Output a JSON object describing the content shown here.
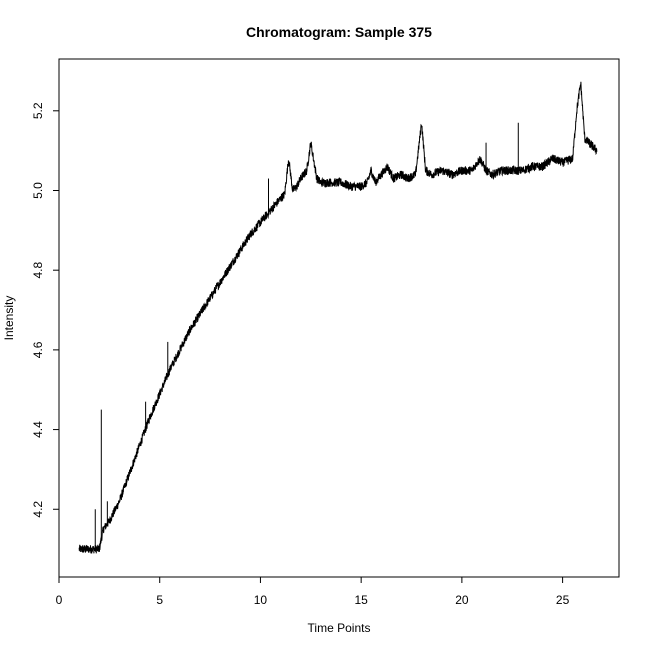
{
  "chart_data": {
    "type": "line",
    "title": "Chromatogram: Sample  375",
    "xlabel": "Time Points",
    "ylabel": "Intensity",
    "xlim": [
      0,
      27.8
    ],
    "ylim": [
      4.03,
      5.33
    ],
    "x_ticks": [
      0,
      5,
      10,
      15,
      20,
      25
    ],
    "y_ticks": [
      4.2,
      4.4,
      4.6,
      4.8,
      5.0,
      5.2
    ],
    "x_tick_labels": [
      "0",
      "5",
      "10",
      "15",
      "20",
      "25"
    ],
    "y_tick_labels": [
      "4.2",
      "4.4",
      "4.6",
      "4.8",
      "5.0",
      "5.2"
    ],
    "grid": false,
    "legend": "none",
    "line_color": "#000000",
    "series": [
      {
        "x": [
          1.0,
          1.5,
          2.0,
          2.2,
          2.5,
          3.0,
          3.5,
          4.0,
          4.5,
          5.0,
          5.5,
          6.0,
          6.5,
          7.0,
          7.5,
          8.0,
          8.5,
          9.0,
          9.5,
          10.0,
          10.5,
          11.0,
          11.2,
          11.4,
          11.6,
          11.8,
          12.0,
          12.3,
          12.5,
          12.8,
          13.0,
          13.5,
          14.0,
          14.5,
          15.0,
          15.3,
          15.5,
          15.7,
          16.0,
          16.3,
          16.6,
          17.0,
          17.3,
          17.7,
          18.0,
          18.2,
          18.5,
          19.0,
          19.5,
          20.0,
          20.5,
          20.9,
          21.2,
          21.5,
          22.0,
          22.5,
          23.0,
          23.5,
          24.0,
          24.5,
          25.0,
          25.5,
          25.7,
          25.9,
          26.1,
          26.5,
          26.7
        ],
        "y": [
          4.1,
          4.1,
          4.1,
          4.15,
          4.17,
          4.22,
          4.29,
          4.36,
          4.43,
          4.49,
          4.55,
          4.6,
          4.65,
          4.69,
          4.73,
          4.77,
          4.81,
          4.85,
          4.89,
          4.92,
          4.95,
          4.98,
          4.99,
          5.08,
          5.0,
          5.01,
          5.03,
          5.05,
          5.12,
          5.03,
          5.02,
          5.02,
          5.02,
          5.01,
          5.01,
          5.02,
          5.05,
          5.02,
          5.04,
          5.06,
          5.03,
          5.04,
          5.03,
          5.04,
          5.17,
          5.05,
          5.04,
          5.05,
          5.04,
          5.05,
          5.05,
          5.08,
          5.05,
          5.04,
          5.05,
          5.05,
          5.05,
          5.06,
          5.06,
          5.08,
          5.07,
          5.08,
          5.2,
          5.27,
          5.13,
          5.11,
          5.1
        ]
      }
    ],
    "spikes": [
      {
        "x": 1.8,
        "y": 4.2
      },
      {
        "x": 2.1,
        "y": 4.45
      },
      {
        "x": 2.4,
        "y": 4.22
      },
      {
        "x": 4.3,
        "y": 4.47
      },
      {
        "x": 5.4,
        "y": 4.62
      },
      {
        "x": 10.4,
        "y": 5.03
      },
      {
        "x": 21.2,
        "y": 5.12
      },
      {
        "x": 22.8,
        "y": 5.17
      }
    ]
  }
}
